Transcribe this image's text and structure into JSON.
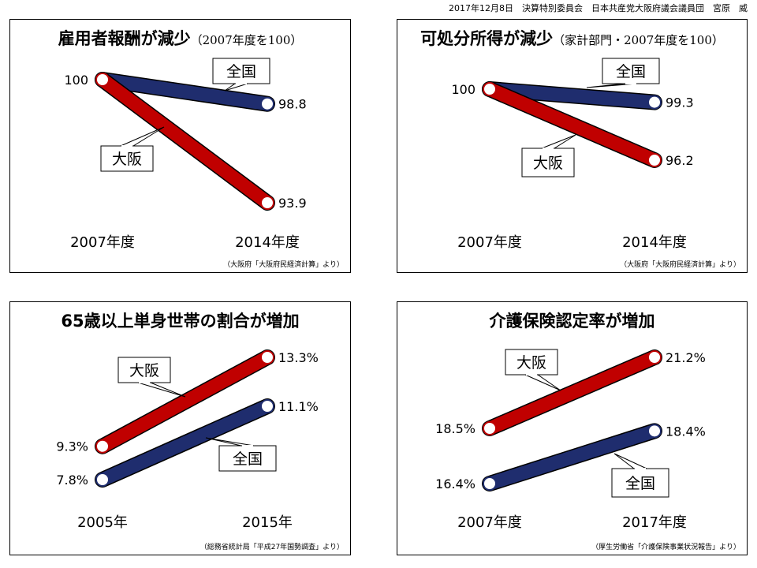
{
  "header": {
    "text": "2017年12月8日　決算特別委員会　日本共産党大阪府議会議員団　宮原　威"
  },
  "colors": {
    "osaka": "#c00000",
    "national": "#1f2d6e",
    "outline": "#000000"
  },
  "panels": [
    {
      "title": "雇用者報酬が減少",
      "subtitle": "（2007年度を100）",
      "source": "（大阪府「大阪府民経済計算」より）"
    },
    {
      "title": "可処分所得が減少",
      "subtitle": "（家計部門・2007年度を100）",
      "source": "（大阪府「大阪府民経済計算」より）"
    },
    {
      "title": "65歳以上単身世帯の割合が増加",
      "subtitle": "",
      "source": "（総務省統計局「平成27年国勢調査」より）"
    },
    {
      "title": "介護保険認定率が増加",
      "subtitle": "",
      "source": "（厚生労働省「介護保険事業状況報告」より）"
    }
  ],
  "chart_data": [
    {
      "type": "line",
      "title": "雇用者報酬が減少（2007年度を100）",
      "categories": [
        "2007年度",
        "2014年度"
      ],
      "series": [
        {
          "name": "全国",
          "values": [
            100,
            98.8
          ],
          "labels": [
            "100",
            "98.8"
          ]
        },
        {
          "name": "大阪",
          "values": [
            100,
            93.9
          ],
          "labels": [
            "",
            "93.9"
          ]
        }
      ]
    },
    {
      "type": "line",
      "title": "可処分所得が減少（家計部門・2007年度を100）",
      "categories": [
        "2007年度",
        "2014年度"
      ],
      "series": [
        {
          "name": "全国",
          "values": [
            100,
            99.3
          ],
          "labels": [
            "100",
            "99.3"
          ]
        },
        {
          "name": "大阪",
          "values": [
            100,
            96.2
          ],
          "labels": [
            "",
            "96.2"
          ]
        }
      ]
    },
    {
      "type": "line",
      "title": "65歳以上単身世帯の割合が増加",
      "categories": [
        "2005年",
        "2015年"
      ],
      "series": [
        {
          "name": "大阪",
          "values": [
            9.3,
            13.3
          ],
          "labels": [
            "9.3%",
            "13.3%"
          ]
        },
        {
          "name": "全国",
          "values": [
            7.8,
            11.1
          ],
          "labels": [
            "7.8%",
            "11.1%"
          ]
        }
      ]
    },
    {
      "type": "line",
      "title": "介護保険認定率が増加",
      "categories": [
        "2007年度",
        "2017年度"
      ],
      "series": [
        {
          "name": "大阪",
          "values": [
            18.5,
            21.2
          ],
          "labels": [
            "18.5%",
            "21.2%"
          ]
        },
        {
          "name": "全国",
          "values": [
            16.4,
            18.4
          ],
          "labels": [
            "16.4%",
            "18.4%"
          ]
        }
      ]
    }
  ]
}
